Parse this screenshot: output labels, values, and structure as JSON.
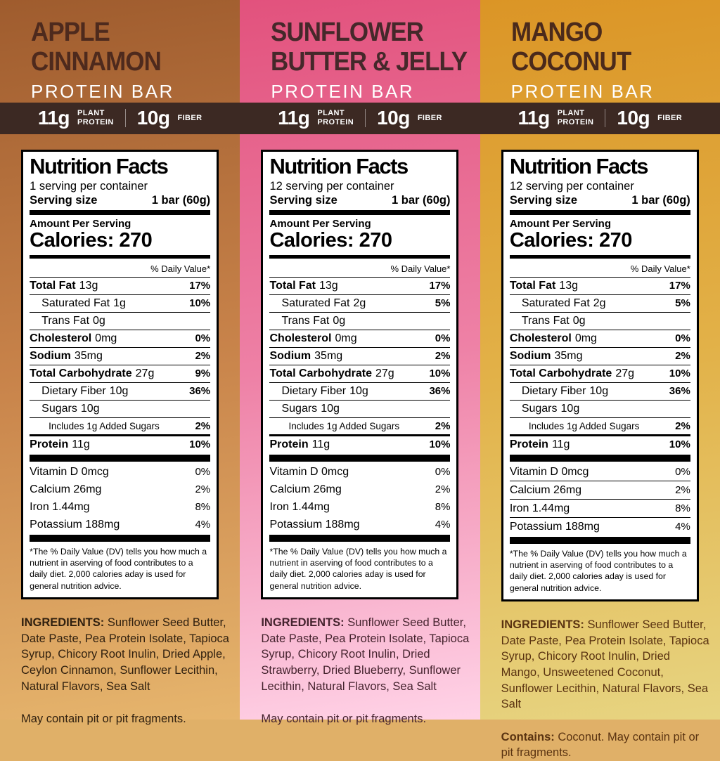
{
  "shared": {
    "product_type": "PROTEIN BAR",
    "banner": {
      "protein_value": "11g",
      "protein_label_lines": [
        "PLANT",
        "PROTEIN"
      ],
      "fiber_value": "10g",
      "fiber_label": "FIBER"
    },
    "nutrition": {
      "title": "Nutrition Facts",
      "serving_size_label": "Serving size",
      "serving_size_value": "1 bar (60g)",
      "amount_label": "Amount Per Serving",
      "calories": "Calories: 270",
      "daily_value_note": "% Daily Value*",
      "footnote": "*The % Daily Value (DV) tells you how much a nutrient in aserving of food contributes to a daily diet. 2,000 calories aday is used for general nutrition advice."
    },
    "ingredients_label": "INGREDIENTS:",
    "colors": {
      "banner_bg": "#3c2923",
      "label_bg": "#ffffff",
      "label_ink": "#000000",
      "banner_text": "#ffffff"
    }
  },
  "panels": [
    {
      "id": "apple-cinnamon",
      "title_line1": "APPLE",
      "title_line2": "CINNAMON",
      "colors": {
        "bg_top": "#9f5c2e",
        "bg_mid": "#c8834a",
        "bg_bottom": "#e6b56d",
        "title": "#4e2a1d",
        "text": "#30200f"
      },
      "nutrition": {
        "servings": "1 serving per container",
        "rows": [
          {
            "name": "Total Fat",
            "amount": "13g",
            "dv": "17%",
            "level": 0
          },
          {
            "name": "Saturated Fat",
            "amount": "1g",
            "dv": "10%",
            "level": 1
          },
          {
            "name": "Trans Fat",
            "amount": "0g",
            "dv": "",
            "level": 1
          },
          {
            "name": "Cholesterol",
            "amount": "0mg",
            "dv": "0%",
            "level": 0
          },
          {
            "name": "Sodium",
            "amount": "35mg",
            "dv": "2%",
            "level": 0
          },
          {
            "name": "Total Carbohydrate",
            "amount": "27g",
            "dv": "9%",
            "level": 0
          },
          {
            "name": "Dietary Fiber",
            "amount": "10g",
            "dv": "36%",
            "level": 1
          },
          {
            "name": "Sugars",
            "amount": "10g",
            "dv": "",
            "level": 1
          },
          {
            "name": "Includes 1g Added Sugars",
            "amount": "",
            "dv": "2%",
            "level": 2
          },
          {
            "name": "Protein",
            "amount": "11g",
            "dv": "10%",
            "level": 0,
            "protein": true
          }
        ],
        "vitamins": [
          {
            "name": "Vitamin D 0mcg",
            "dv": "0%"
          },
          {
            "name": "Calcium 26mg",
            "dv": "2%"
          },
          {
            "name": "Iron 1.44mg",
            "dv": "8%"
          },
          {
            "name": "Potassium 188mg",
            "dv": "4%"
          }
        ],
        "vitamin_separators": false
      },
      "ingredients_body": "Sunflower Seed Butter, Date Paste, Pea Protein Isolate, Tapioca Syrup, Chicory Root Inulin, Dried Apple, Ceylon Cinnamon, Sunflower Lecithin, Natural Flavors, Sea Salt",
      "allergen_prefix": "",
      "allergen_text": "May contain pit or pit fragments."
    },
    {
      "id": "sunflower-butter-jelly",
      "title_line1": "SUNFLOWER",
      "title_line2": "BUTTER & JELLY",
      "colors": {
        "bg_top": "#e2527d",
        "bg_mid": "#ee81a6",
        "bg_bottom": "#ffd3e7",
        "title": "#45282a",
        "text": "#45232e"
      },
      "nutrition": {
        "servings": "12 serving per container",
        "rows": [
          {
            "name": "Total Fat",
            "amount": "13g",
            "dv": "17%",
            "level": 0
          },
          {
            "name": "Saturated Fat",
            "amount": "2g",
            "dv": "5%",
            "level": 1
          },
          {
            "name": "Trans Fat",
            "amount": "0g",
            "dv": "",
            "level": 1
          },
          {
            "name": "Cholesterol",
            "amount": "0mg",
            "dv": "0%",
            "level": 0
          },
          {
            "name": "Sodium",
            "amount": "35mg",
            "dv": "2%",
            "level": 0
          },
          {
            "name": "Total Carbohydrate",
            "amount": "27g",
            "dv": "10%",
            "level": 0
          },
          {
            "name": "Dietary Fiber",
            "amount": "10g",
            "dv": "36%",
            "level": 1
          },
          {
            "name": "Sugars",
            "amount": "10g",
            "dv": "",
            "level": 1
          },
          {
            "name": "Includes 1g Added Sugars",
            "amount": "",
            "dv": "2%",
            "level": 2
          },
          {
            "name": "Protein",
            "amount": "11g",
            "dv": "10%",
            "level": 0,
            "protein": true
          }
        ],
        "vitamins": [
          {
            "name": "Vitamin D 0mcg",
            "dv": "0%"
          },
          {
            "name": "Calcium 26mg",
            "dv": "2%"
          },
          {
            "name": "Iron 1.44mg",
            "dv": "8%"
          },
          {
            "name": "Potassium 188mg",
            "dv": "4%"
          }
        ],
        "vitamin_separators": false
      },
      "ingredients_body": "Sunflower Seed Butter, Date Paste, Pea Protein Isolate, Tapioca Syrup, Chicory Root Inulin, Dried Strawberry, Dried Blueberry, Sunflower Lecithin, Natural Flavors, Sea Salt",
      "allergen_prefix": "",
      "allergen_text": "May contain pit or pit fragments."
    },
    {
      "id": "mango-coconut",
      "title_line1": "MANGO",
      "title_line2": "COCONUT",
      "colors": {
        "bg_top": "#db9526",
        "bg_mid": "#e2b148",
        "bg_bottom": "#e7d481",
        "title": "#4b2a1b",
        "text": "#5a3311"
      },
      "nutrition": {
        "servings": "12 serving per container",
        "rows": [
          {
            "name": "Total Fat",
            "amount": "13g",
            "dv": "17%",
            "level": 0
          },
          {
            "name": "Saturated Fat",
            "amount": "2g",
            "dv": "5%",
            "level": 1
          },
          {
            "name": "Trans Fat",
            "amount": "0g",
            "dv": "",
            "level": 1
          },
          {
            "name": "Cholesterol",
            "amount": "0mg",
            "dv": "0%",
            "level": 0
          },
          {
            "name": "Sodium",
            "amount": "35mg",
            "dv": "2%",
            "level": 0
          },
          {
            "name": "Total Carbohydrate",
            "amount": "27g",
            "dv": "10%",
            "level": 0
          },
          {
            "name": "Dietary Fiber",
            "amount": "10g",
            "dv": "36%",
            "level": 1
          },
          {
            "name": "Sugars",
            "amount": "10g",
            "dv": "",
            "level": 1
          },
          {
            "name": "Includes 1g Added Sugars",
            "amount": "",
            "dv": "2%",
            "level": 2
          },
          {
            "name": "Protein",
            "amount": "11g",
            "dv": "10%",
            "level": 0,
            "protein": true
          }
        ],
        "vitamins": [
          {
            "name": "Vitamin D 0mcg",
            "dv": "0%"
          },
          {
            "name": "Calcium 26mg",
            "dv": "2%"
          },
          {
            "name": "Iron 1.44mg",
            "dv": "8%"
          },
          {
            "name": "Potassium 188mg",
            "dv": "4%"
          }
        ],
        "vitamin_separators": true
      },
      "ingredients_body": "Sunflower Seed Butter, Date Paste, Pea Protein Isolate, Tapioca Syrup, Chicory Root Inulin, Dried Mango, Unsweetened Coconut, Sunflower Lecithin, Natural Flavors, Sea Salt",
      "allergen_prefix": "Contains: ",
      "allergen_text": "Coconut. May contain pit or pit fragments."
    }
  ]
}
